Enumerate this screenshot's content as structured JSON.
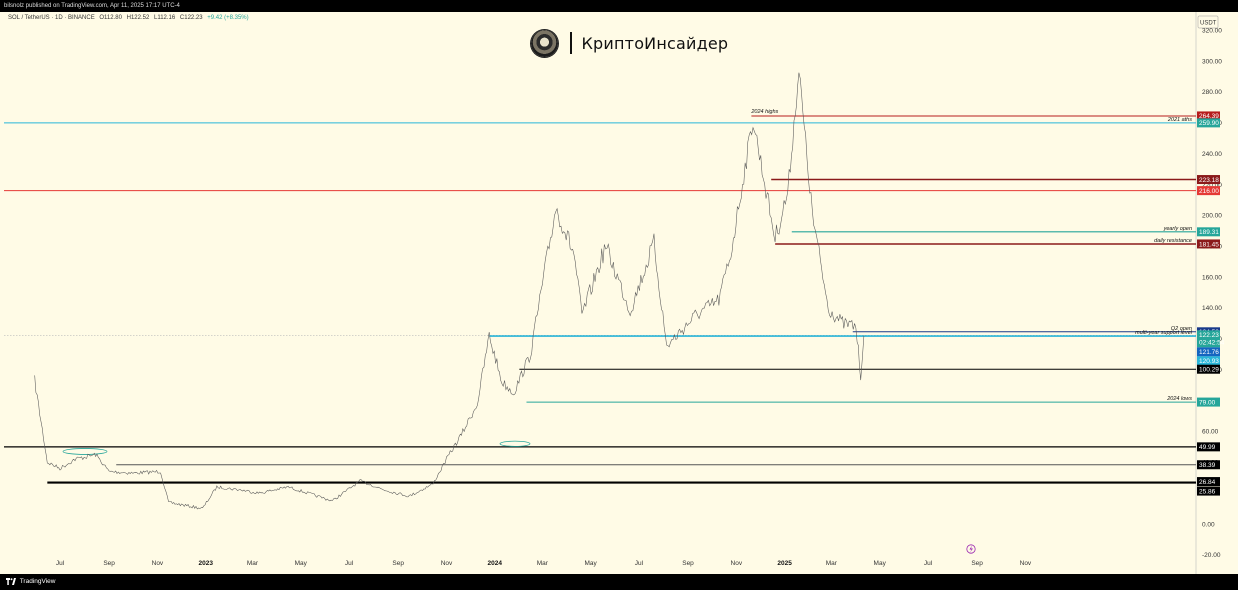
{
  "header": {
    "published": "bilsnolz published on TradingView.com, Apr 11, 2025 17:17 UTC-4",
    "symbol": "SOL / TetherUS · 1D · BINANCE",
    "open": "O112.80",
    "high": "H122.52",
    "low": "L112.16",
    "close": "C122.23",
    "change": "+9.42 (+8.35%)"
  },
  "brand": {
    "name": "КриптоИнсайдер"
  },
  "footer": {
    "logo_text": "TradingView"
  },
  "colors": {
    "background": "#fffbe6",
    "candles": "#555555",
    "cyan": "#29b6d9",
    "red": "#e53935",
    "teal": "#26a69a",
    "darkred": "#8b1a1a",
    "black": "#000000",
    "blue": "#1565c0"
  },
  "chart_data": {
    "type": "line",
    "currency": "USDT",
    "yticks": [
      "320.00",
      "300.00",
      "280.00",
      "260.00",
      "240.00",
      "220.00",
      "200.00",
      "180.00",
      "160.00",
      "140.00",
      "120.00",
      "100.00",
      "80.00",
      "60.00",
      "40.00",
      "20.00",
      "0.00",
      "-20.00"
    ],
    "xticks": [
      {
        "label": "Jul",
        "bold": false
      },
      {
        "label": "Sep",
        "bold": false
      },
      {
        "label": "Nov",
        "bold": false
      },
      {
        "label": "2023",
        "bold": true
      },
      {
        "label": "Mar",
        "bold": false
      },
      {
        "label": "May",
        "bold": false
      },
      {
        "label": "Jul",
        "bold": false
      },
      {
        "label": "Sep",
        "bold": false
      },
      {
        "label": "Nov",
        "bold": false
      },
      {
        "label": "2024",
        "bold": true
      },
      {
        "label": "Mar",
        "bold": false
      },
      {
        "label": "May",
        "bold": false
      },
      {
        "label": "Jul",
        "bold": false
      },
      {
        "label": "Sep",
        "bold": false
      },
      {
        "label": "Nov",
        "bold": false
      },
      {
        "label": "2025",
        "bold": true
      },
      {
        "label": "Mar",
        "bold": false
      },
      {
        "label": "May",
        "bold": false
      },
      {
        "label": "Jul",
        "bold": false
      },
      {
        "label": "Sep",
        "bold": false
      },
      {
        "label": "Nov",
        "bold": false
      }
    ],
    "price_series": [
      {
        "x": "2022-05-30",
        "y": 93
      },
      {
        "x": "2022-06-15",
        "y": 40
      },
      {
        "x": "2022-07-01",
        "y": 36
      },
      {
        "x": "2022-07-20",
        "y": 42
      },
      {
        "x": "2022-08-15",
        "y": 45
      },
      {
        "x": "2022-09-01",
        "y": 34
      },
      {
        "x": "2022-10-01",
        "y": 33
      },
      {
        "x": "2022-11-05",
        "y": 34
      },
      {
        "x": "2022-11-15",
        "y": 14
      },
      {
        "x": "2022-12-28",
        "y": 10
      },
      {
        "x": "2023-01-15",
        "y": 24
      },
      {
        "x": "2023-02-15",
        "y": 22
      },
      {
        "x": "2023-03-10",
        "y": 20
      },
      {
        "x": "2023-04-15",
        "y": 24
      },
      {
        "x": "2023-06-10",
        "y": 15
      },
      {
        "x": "2023-07-15",
        "y": 28
      },
      {
        "x": "2023-08-15",
        "y": 22
      },
      {
        "x": "2023-09-15",
        "y": 18
      },
      {
        "x": "2023-10-15",
        "y": 26
      },
      {
        "x": "2023-11-01",
        "y": 42
      },
      {
        "x": "2023-11-20",
        "y": 58
      },
      {
        "x": "2023-12-10",
        "y": 78
      },
      {
        "x": "2023-12-25",
        "y": 122
      },
      {
        "x": "2024-01-10",
        "y": 92
      },
      {
        "x": "2024-01-25",
        "y": 85
      },
      {
        "x": "2024-02-15",
        "y": 110
      },
      {
        "x": "2024-03-18",
        "y": 205
      },
      {
        "x": "2024-04-10",
        "y": 175
      },
      {
        "x": "2024-04-20",
        "y": 135
      },
      {
        "x": "2024-05-20",
        "y": 180
      },
      {
        "x": "2024-06-20",
        "y": 138
      },
      {
        "x": "2024-07-20",
        "y": 182
      },
      {
        "x": "2024-08-05",
        "y": 115
      },
      {
        "x": "2024-09-10",
        "y": 135
      },
      {
        "x": "2024-10-10",
        "y": 145
      },
      {
        "x": "2024-10-25",
        "y": 175
      },
      {
        "x": "2024-11-22",
        "y": 262
      },
      {
        "x": "2024-12-20",
        "y": 185
      },
      {
        "x": "2025-01-05",
        "y": 215
      },
      {
        "x": "2025-01-19",
        "y": 294
      },
      {
        "x": "2025-02-05",
        "y": 200
      },
      {
        "x": "2025-02-25",
        "y": 140
      },
      {
        "x": "2025-03-15",
        "y": 130
      },
      {
        "x": "2025-04-01",
        "y": 128
      },
      {
        "x": "2025-04-07",
        "y": 96
      },
      {
        "x": "2025-04-11",
        "y": 122
      }
    ],
    "levels": [
      {
        "price": "264.39",
        "color": "#b71c1c",
        "note": "2024 highs"
      },
      {
        "price": "259.90",
        "color": "#26a69a",
        "note": "2021 aths"
      },
      {
        "price": "223.18",
        "color": "#8b1a1a",
        "note": ""
      },
      {
        "price": "216.00",
        "color": "#e53935",
        "note": ""
      },
      {
        "price": "189.31",
        "color": "#26a69a",
        "note": "yearly open"
      },
      {
        "price": "181.45",
        "color": "#8b1a1a",
        "note": "daily resistance"
      },
      {
        "price": "124.53",
        "color": "#1a3a8a",
        "note": "Q2 open"
      },
      {
        "price": "122.23",
        "color": "#26a69a",
        "note": "02:42:54"
      },
      {
        "price": "121.76",
        "color": "#1565c0",
        "note": "multi-year support level"
      },
      {
        "price": "120.93",
        "color": "#29b6d9",
        "note": ""
      },
      {
        "price": "100.29",
        "color": "#000000",
        "note": ""
      },
      {
        "price": "79.00",
        "color": "#26a69a",
        "note": "2024 lows"
      },
      {
        "price": "49.99",
        "color": "#000000",
        "note": ""
      },
      {
        "price": "38.39",
        "color": "#000000",
        "note": ""
      },
      {
        "price": "26.84",
        "color": "#000000",
        "note": ""
      },
      {
        "price": "25.86",
        "color": "#000000",
        "note": ""
      }
    ],
    "ylim": [
      -20,
      320
    ],
    "grid": false
  }
}
